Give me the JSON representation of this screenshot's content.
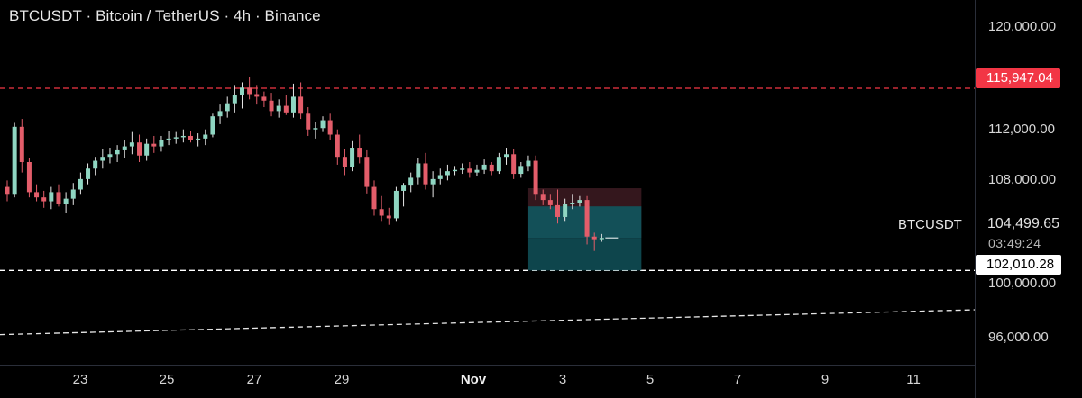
{
  "header": {
    "title": "BTCUSDT · Bitcoin / TetherUS · 4h · Binance"
  },
  "price_axis": {
    "labels": [
      "120,000.00",
      "112,000.00",
      "108,000.00",
      "100,000.00",
      "96,000.00"
    ],
    "alert_price": "115,947.04",
    "current_symbol": "BTCUSDT",
    "current_price": "104,499.65",
    "countdown": "03:49:24",
    "level_price": "102,010.28"
  },
  "time_axis": {
    "labels": [
      "23",
      "25",
      "27",
      "29",
      "Nov",
      "3",
      "5",
      "7",
      "9",
      "11"
    ]
  },
  "colors": {
    "up": "#8fd6c2",
    "down": "#e35d6a",
    "alert_line": "#f23645",
    "level_line": "#ffffff",
    "position_target": "#0f4c54",
    "position_stop": "#3a1a20"
  },
  "chart_data": {
    "type": "candlestick",
    "symbol": "BTCUSDT",
    "interval": "4h",
    "exchange": "Binance",
    "ylim": [
      94800,
      122700
    ],
    "x_ticks": [
      "23",
      "25",
      "27",
      "29",
      "Nov",
      "3",
      "5",
      "7",
      "9",
      "11"
    ],
    "horizontal_levels": [
      {
        "price": 115947.04,
        "style": "dashed",
        "color": "#f23645"
      },
      {
        "price": 102010.28,
        "style": "dashed",
        "color": "#ffffff"
      }
    ],
    "trendline": {
      "start": [
        "Oct 21",
        97100
      ],
      "end": [
        "Nov 12",
        99000
      ],
      "style": "dashed"
    },
    "position_box": {
      "entry": 104500,
      "stop": 108300,
      "target": 102010,
      "direction": "short"
    },
    "candles": [
      [
        108400,
        108900,
        107300,
        107800
      ],
      [
        107800,
        113300,
        107600,
        113000
      ],
      [
        113000,
        113600,
        109500,
        110300
      ],
      [
        110300,
        110600,
        107600,
        108000
      ],
      [
        108000,
        108600,
        107300,
        107600
      ],
      [
        107600,
        108100,
        106800,
        107300
      ],
      [
        107300,
        108400,
        106700,
        108000
      ],
      [
        108000,
        108600,
        106900,
        107100
      ],
      [
        107100,
        108000,
        106400,
        107500
      ],
      [
        107500,
        108700,
        107000,
        108200
      ],
      [
        108200,
        109500,
        107800,
        109000
      ],
      [
        109000,
        110200,
        108600,
        109800
      ],
      [
        109800,
        110700,
        109300,
        110400
      ],
      [
        110400,
        111300,
        109800,
        110700
      ],
      [
        110700,
        111400,
        110200,
        110900
      ],
      [
        110900,
        111600,
        110300,
        111200
      ],
      [
        111200,
        112000,
        110600,
        111500
      ],
      [
        111500,
        112600,
        110900,
        111800
      ],
      [
        111800,
        112400,
        110300,
        110800
      ],
      [
        110800,
        112100,
        110400,
        111700
      ],
      [
        111700,
        112300,
        111000,
        111500
      ],
      [
        111500,
        112300,
        111100,
        112000
      ],
      [
        112000,
        112700,
        111600,
        112100
      ],
      [
        112100,
        112600,
        111700,
        112200
      ],
      [
        112200,
        112800,
        111800,
        112300
      ],
      [
        112300,
        112700,
        111800,
        112000
      ],
      [
        112000,
        112500,
        111500,
        112100
      ],
      [
        112100,
        112800,
        111600,
        112400
      ],
      [
        112400,
        114000,
        112200,
        113800
      ],
      [
        113800,
        114700,
        113200,
        114200
      ],
      [
        114200,
        115300,
        113700,
        114800
      ],
      [
        114800,
        116200,
        114100,
        115400
      ],
      [
        115400,
        116400,
        114400,
        116000
      ],
      [
        116000,
        116800,
        115100,
        115500
      ],
      [
        115500,
        116200,
        114700,
        115300
      ],
      [
        115300,
        115700,
        114500,
        115000
      ],
      [
        115000,
        115600,
        113800,
        114200
      ],
      [
        114200,
        115100,
        113700,
        114600
      ],
      [
        114600,
        115400,
        113900,
        114100
      ],
      [
        114100,
        116300,
        113700,
        115300
      ],
      [
        115300,
        116400,
        113600,
        114000
      ],
      [
        114000,
        114500,
        112300,
        112800
      ],
      [
        112800,
        113400,
        112100,
        112900
      ],
      [
        112900,
        113800,
        112600,
        113500
      ],
      [
        113500,
        114000,
        112000,
        112400
      ],
      [
        112400,
        112800,
        110100,
        110700
      ],
      [
        110700,
        111300,
        109300,
        109900
      ],
      [
        109900,
        111900,
        109600,
        111400
      ],
      [
        111400,
        112400,
        110200,
        110700
      ],
      [
        110700,
        111200,
        107900,
        108400
      ],
      [
        108400,
        108900,
        106200,
        106700
      ],
      [
        106700,
        107700,
        105800,
        106200
      ],
      [
        106200,
        106800,
        105500,
        106000
      ],
      [
        106000,
        108400,
        105800,
        108100
      ],
      [
        108100,
        108700,
        106900,
        108500
      ],
      [
        108500,
        109500,
        108000,
        109100
      ],
      [
        109100,
        110600,
        108600,
        110200
      ],
      [
        110200,
        111000,
        108200,
        108600
      ],
      [
        108600,
        109600,
        107600,
        109000
      ],
      [
        109000,
        109800,
        108600,
        109300
      ],
      [
        109300,
        110100,
        108900,
        109600
      ],
      [
        109600,
        110000,
        109300,
        109700
      ],
      [
        109700,
        110200,
        109400,
        109800
      ],
      [
        109800,
        110300,
        109100,
        109500
      ],
      [
        109500,
        110100,
        109200,
        109700
      ],
      [
        109700,
        110500,
        109400,
        110100
      ],
      [
        110100,
        110300,
        109300,
        109600
      ],
      [
        109600,
        111000,
        109400,
        110700
      ],
      [
        110700,
        111400,
        110100,
        110900
      ],
      [
        110900,
        111300,
        109000,
        109400
      ],
      [
        109400,
        110300,
        109100,
        110000
      ],
      [
        110000,
        110800,
        109600,
        110400
      ],
      [
        110400,
        110800,
        107400,
        107800
      ],
      [
        107800,
        108200,
        107000,
        107400
      ],
      [
        107400,
        107800,
        106700,
        107000
      ],
      [
        107000,
        108200,
        105600,
        106100
      ],
      [
        106100,
        107500,
        105800,
        107100
      ],
      [
        107100,
        107800,
        106700,
        107200
      ],
      [
        107200,
        107700,
        106900,
        107400
      ],
      [
        107400,
        107700,
        104000,
        104600
      ],
      [
        104600,
        104900,
        103500,
        104400
      ],
      [
        104400,
        104800,
        104200,
        104500
      ]
    ]
  }
}
